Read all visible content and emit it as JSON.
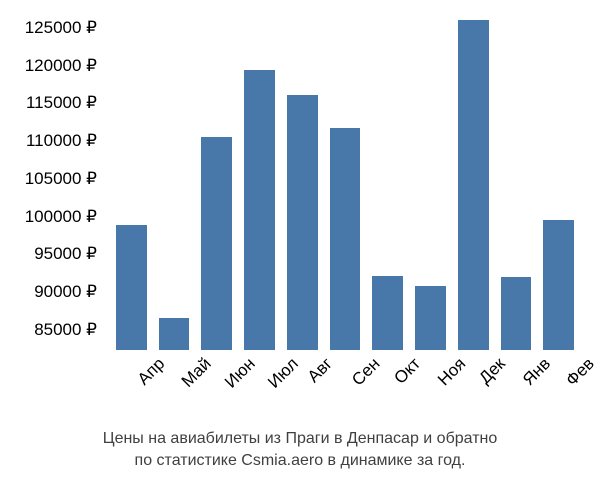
{
  "chart": {
    "type": "bar",
    "background_color": "#ffffff",
    "bar_color": "#4878a9",
    "text_color": "#000000",
    "caption_color": "#404040",
    "bar_width": 0.72,
    "axis_fontsize": 17,
    "caption_fontsize": 16,
    "ylim": [
      85000,
      130000
    ],
    "ytick_step": 5000,
    "y_suffix": " ₽",
    "xlabel_rotation": -45,
    "categories": [
      "Апр",
      "Май",
      "Июн",
      "Июл",
      "Авг",
      "Сен",
      "Окт",
      "Ноя",
      "Дек",
      "Янв",
      "Фев"
    ],
    "values": [
      101500,
      89300,
      113200,
      122000,
      118700,
      114400,
      94800,
      93500,
      128700,
      94700,
      102200
    ],
    "caption_line1": "Цены на авиабилеты из Праги в Денпасар и обратно",
    "caption_line2": "по статистике Csmia.aero в динамике за год."
  }
}
